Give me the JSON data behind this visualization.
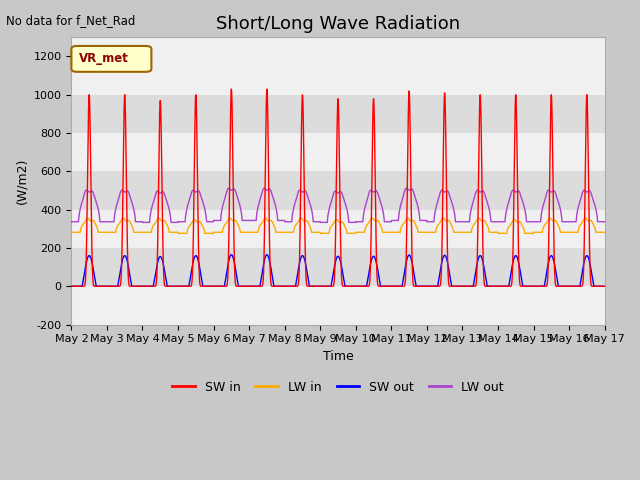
{
  "title": "Short/Long Wave Radiation",
  "top_left_text": "No data for f_Net_Rad",
  "legend_label_text": "VR_met",
  "xlabel": "Time",
  "ylabel": "(W/m2)",
  "ylim": [
    -200,
    1300
  ],
  "yticks": [
    -200,
    0,
    200,
    400,
    600,
    800,
    1000,
    1200
  ],
  "x_start_day": 2,
  "x_end_day": 17,
  "x_tick_days": [
    2,
    3,
    4,
    5,
    6,
    7,
    8,
    9,
    10,
    11,
    12,
    13,
    14,
    15,
    16,
    17
  ],
  "x_tick_labels": [
    "May 2",
    "May 3",
    "May 4",
    "May 5",
    "May 6",
    "May 7",
    "May 8",
    "May 9",
    "May 10",
    "May 11",
    "May 12",
    "May 13",
    "May 14",
    "May 15",
    "May 16",
    "May 17"
  ],
  "series": {
    "SW_in": {
      "color": "#ff0000",
      "label": "SW in",
      "linewidth": 1.0
    },
    "LW_in": {
      "color": "#ffaa00",
      "label": "LW in",
      "linewidth": 1.0
    },
    "SW_out": {
      "color": "#0000ff",
      "label": "SW out",
      "linewidth": 1.0
    },
    "LW_out": {
      "color": "#aa44cc",
      "label": "LW out",
      "linewidth": 1.0
    }
  },
  "band_colors": [
    "#f0f0f0",
    "#dcdcdc"
  ],
  "grid_color": "#bbbbbb",
  "fig_bg_color": "#c8c8c8",
  "plot_bg_color": "#f0f0f0",
  "title_fontsize": 13,
  "label_fontsize": 9,
  "tick_fontsize": 8
}
